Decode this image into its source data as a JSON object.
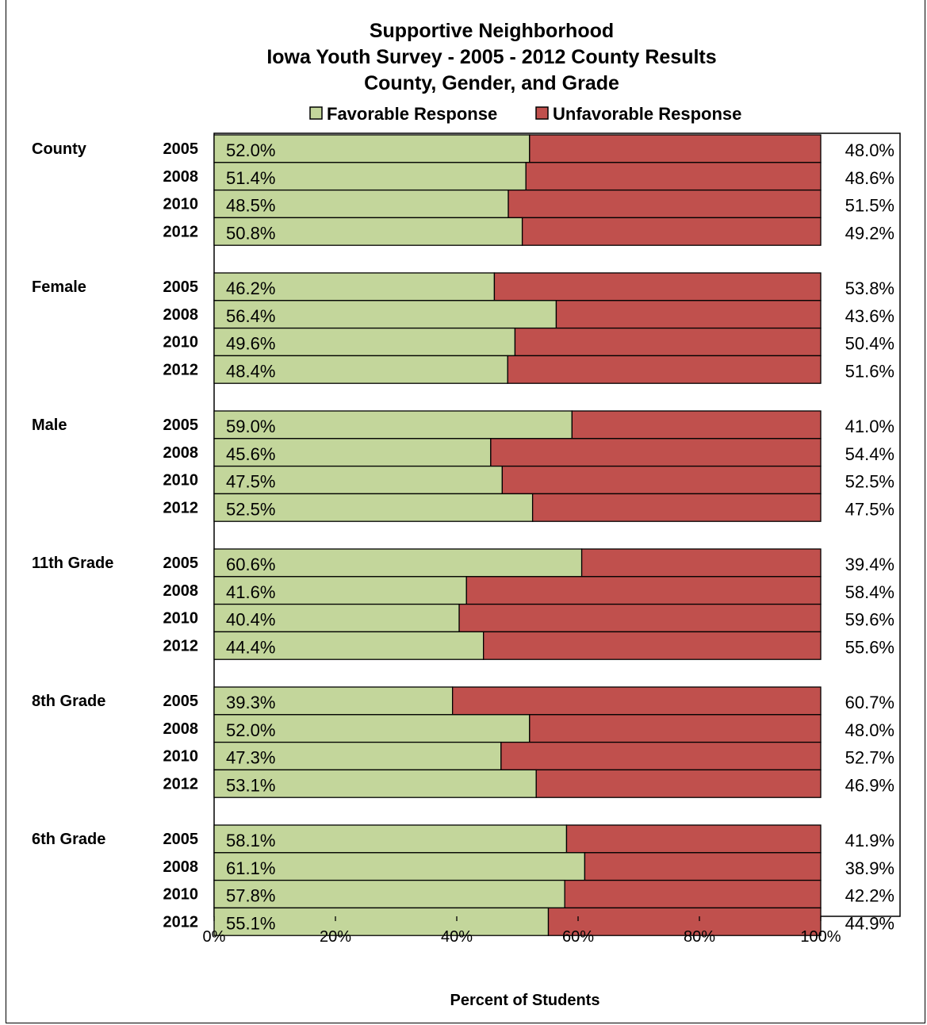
{
  "chart_data": {
    "type": "bar",
    "orientation": "horizontal",
    "stacked": true,
    "title": [
      "Supportive Neighborhood",
      "Iowa Youth Survey - 2005 - 2012 County Results",
      "County, Gender, and Grade"
    ],
    "xlabel": "Percent of Students",
    "xlim": [
      0,
      100
    ],
    "x_ticks": [
      "0%",
      "20%",
      "40%",
      "60%",
      "80%",
      "100%"
    ],
    "legend": {
      "placement": "top",
      "entries": [
        {
          "name": "Favorable Response",
          "color": "#c3d69b"
        },
        {
          "name": "Unfavorable Response",
          "color": "#c0504d"
        }
      ]
    },
    "groups": [
      {
        "name": "County",
        "rows": [
          {
            "year": "2005",
            "favorable": 52.0,
            "unfavorable": 48.0,
            "fav_label": "52.0%",
            "unfav_label": "48.0%"
          },
          {
            "year": "2008",
            "favorable": 51.4,
            "unfavorable": 48.6,
            "fav_label": "51.4%",
            "unfav_label": "48.6%"
          },
          {
            "year": "2010",
            "favorable": 48.5,
            "unfavorable": 51.5,
            "fav_label": "48.5%",
            "unfav_label": "51.5%"
          },
          {
            "year": "2012",
            "favorable": 50.8,
            "unfavorable": 49.2,
            "fav_label": "50.8%",
            "unfav_label": "49.2%"
          }
        ]
      },
      {
        "name": "Female",
        "rows": [
          {
            "year": "2005",
            "favorable": 46.2,
            "unfavorable": 53.8,
            "fav_label": "46.2%",
            "unfav_label": "53.8%"
          },
          {
            "year": "2008",
            "favorable": 56.4,
            "unfavorable": 43.6,
            "fav_label": "56.4%",
            "unfav_label": "43.6%"
          },
          {
            "year": "2010",
            "favorable": 49.6,
            "unfavorable": 50.4,
            "fav_label": "49.6%",
            "unfav_label": "50.4%"
          },
          {
            "year": "2012",
            "favorable": 48.4,
            "unfavorable": 51.6,
            "fav_label": "48.4%",
            "unfav_label": "51.6%"
          }
        ]
      },
      {
        "name": "Male",
        "rows": [
          {
            "year": "2005",
            "favorable": 59.0,
            "unfavorable": 41.0,
            "fav_label": "59.0%",
            "unfav_label": "41.0%"
          },
          {
            "year": "2008",
            "favorable": 45.6,
            "unfavorable": 54.4,
            "fav_label": "45.6%",
            "unfav_label": "54.4%"
          },
          {
            "year": "2010",
            "favorable": 47.5,
            "unfavorable": 52.5,
            "fav_label": "47.5%",
            "unfav_label": "52.5%"
          },
          {
            "year": "2012",
            "favorable": 52.5,
            "unfavorable": 47.5,
            "fav_label": "52.5%",
            "unfav_label": "47.5%"
          }
        ]
      },
      {
        "name": "11th Grade",
        "rows": [
          {
            "year": "2005",
            "favorable": 60.6,
            "unfavorable": 39.4,
            "fav_label": "60.6%",
            "unfav_label": "39.4%"
          },
          {
            "year": "2008",
            "favorable": 41.6,
            "unfavorable": 58.4,
            "fav_label": "41.6%",
            "unfav_label": "58.4%"
          },
          {
            "year": "2010",
            "favorable": 40.4,
            "unfavorable": 59.6,
            "fav_label": "40.4%",
            "unfav_label": "59.6%"
          },
          {
            "year": "2012",
            "favorable": 44.4,
            "unfavorable": 55.6,
            "fav_label": "44.4%",
            "unfav_label": "55.6%"
          }
        ]
      },
      {
        "name": "8th Grade",
        "rows": [
          {
            "year": "2005",
            "favorable": 39.3,
            "unfavorable": 60.7,
            "fav_label": "39.3%",
            "unfav_label": "60.7%"
          },
          {
            "year": "2008",
            "favorable": 52.0,
            "unfavorable": 48.0,
            "fav_label": "52.0%",
            "unfav_label": "48.0%"
          },
          {
            "year": "2010",
            "favorable": 47.3,
            "unfavorable": 52.7,
            "fav_label": "47.3%",
            "unfav_label": "52.7%"
          },
          {
            "year": "2012",
            "favorable": 53.1,
            "unfavorable": 46.9,
            "fav_label": "53.1%",
            "unfav_label": "46.9%"
          }
        ]
      },
      {
        "name": "6th Grade",
        "rows": [
          {
            "year": "2005",
            "favorable": 58.1,
            "unfavorable": 41.9,
            "fav_label": "58.1%",
            "unfav_label": "41.9%"
          },
          {
            "year": "2008",
            "favorable": 61.1,
            "unfavorable": 38.9,
            "fav_label": "61.1%",
            "unfav_label": "38.9%"
          },
          {
            "year": "2010",
            "favorable": 57.8,
            "unfavorable": 42.2,
            "fav_label": "57.8%",
            "unfav_label": "42.2%"
          },
          {
            "year": "2012",
            "favorable": 55.1,
            "unfavorable": 44.9,
            "fav_label": "55.1%",
            "unfav_label": "44.9%"
          }
        ]
      }
    ]
  }
}
